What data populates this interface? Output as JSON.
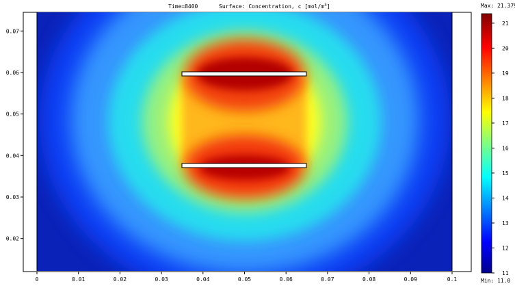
{
  "title": {
    "time": "Time=8400",
    "surface": "Surface: Concentration, c [mol/m",
    "surface_sup": "3",
    "surface_end": "]"
  },
  "chart_data": {
    "type": "heatmap",
    "title": "Time=8400     Surface: Concentration, c [mol/m3]",
    "xlabel": "",
    "ylabel": "",
    "xlim": [
      0,
      0.1
    ],
    "ylim": [
      0.0122,
      0.0745
    ],
    "x_ticks": [
      "0",
      "0.01",
      "0.02",
      "0.03",
      "0.04",
      "0.05",
      "0.06",
      "0.07",
      "0.08",
      "0.09",
      "0.1"
    ],
    "y_ticks": [
      "0.02",
      "0.03",
      "0.04",
      "0.05",
      "0.06",
      "0.07"
    ],
    "colorbar": {
      "max_label": "Max: 21.379",
      "min_label": "Min: 11.0",
      "min": 11.0,
      "max": 21.379,
      "ticks": [
        "11",
        "12",
        "13",
        "14",
        "15",
        "16",
        "17",
        "18",
        "19",
        "20",
        "21"
      ],
      "colormap": "jet"
    },
    "plates": [
      {
        "name": "upper-plate",
        "x_range": [
          0.035,
          0.065
        ],
        "y_range": [
          0.0598,
          0.0608
        ]
      },
      {
        "name": "lower-plate",
        "x_range": [
          0.035,
          0.065
        ],
        "y_range": [
          0.0378,
          0.0388
        ]
      }
    ],
    "domain": {
      "x_range": [
        0,
        0.1
      ],
      "y_range": [
        0.0122,
        0.0745
      ],
      "background": "#0b22b8"
    },
    "grid": false,
    "legend": "colorbar right"
  },
  "colors": {
    "plate_fill": "#ffffff",
    "plate_stroke": "#000000"
  }
}
